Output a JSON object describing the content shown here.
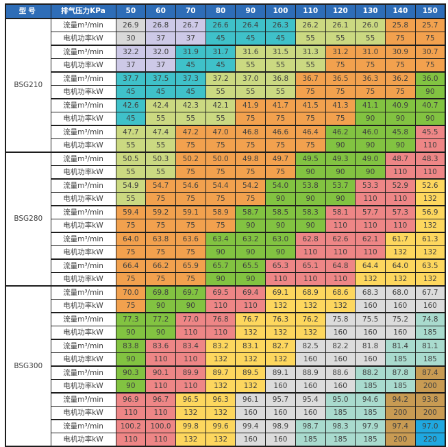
{
  "table": {
    "columns": {
      "model_header": "型号",
      "pressure_header": "排气压力KPa",
      "pressures": [
        "50",
        "60",
        "70",
        "80",
        "90",
        "100",
        "110",
        "120",
        "130",
        "140",
        "150"
      ]
    },
    "row_labels": {
      "flow": "流量m³/min",
      "power": "电机功率kW"
    },
    "colors": {
      "header_bg": "#2e6db7",
      "header_text": "#ffffff",
      "cell_text": "#3f3f3f",
      "border": "#1d1d1d",
      "label_bg": "#ffffff",
      "power_scale": {
        "30": "#d9d9d9",
        "37": "#cdc9e7",
        "45": "#3fc1c9",
        "55": "#cbd981",
        "75": "#f2a14e",
        "90": "#82c341",
        "110": "#ee8686",
        "132": "#fdd75e",
        "160": "#dcdcdc",
        "185": "#a9dbce",
        "200": "#c89b53",
        "220": "#1fa8e0"
      }
    },
    "groups": [
      {
        "model": "BSG210",
        "pairs": [
          {
            "flow": [
              "26.9",
              "26.8",
              "26.7",
              "26.6",
              "26.4",
              "26.3",
              "26.2",
              "26.1",
              "26.0",
              "25.8",
              "25.7"
            ],
            "power": [
              "30",
              "37",
              "37",
              "45",
              "45",
              "45",
              "55",
              "55",
              "55",
              "75",
              "75"
            ]
          },
          {
            "flow": [
              "32.2",
              "32.0",
              "31.9",
              "31.7",
              "31.6",
              "31.5",
              "31.3",
              "31.2",
              "31.0",
              "30.9",
              "30.7"
            ],
            "power": [
              "37",
              "37",
              "45",
              "45",
              "55",
              "55",
              "55",
              "75",
              "75",
              "75",
              "75"
            ]
          },
          {
            "flow": [
              "37.7",
              "37.5",
              "37.3",
              "37.2",
              "37.0",
              "36.8",
              "36.7",
              "36.5",
              "36.3",
              "36.2",
              "36.0"
            ],
            "power": [
              "45",
              "45",
              "45",
              "55",
              "55",
              "55",
              "75",
              "75",
              "75",
              "75",
              "90"
            ]
          },
          {
            "flow": [
              "42.6",
              "42.4",
              "42.3",
              "42.1",
              "41.9",
              "41.7",
              "41.5",
              "41.3",
              "41.1",
              "40.9",
              "40.7"
            ],
            "power": [
              "45",
              "55",
              "55",
              "55",
              "75",
              "75",
              "75",
              "75",
              "90",
              "90",
              "90"
            ]
          },
          {
            "flow": [
              "47.7",
              "47.4",
              "47.2",
              "47.0",
              "46.8",
              "46.6",
              "46.4",
              "46.2",
              "46.0",
              "45.8",
              "45.5"
            ],
            "power": [
              "55",
              "55",
              "75",
              "75",
              "75",
              "75",
              "75",
              "90",
              "90",
              "90",
              "110"
            ]
          }
        ]
      },
      {
        "model": "BSG280",
        "pairs": [
          {
            "flow": [
              "50.5",
              "50.3",
              "50.2",
              "50.0",
              "49.8",
              "49.7",
              "49.5",
              "49.3",
              "49.0",
              "48.7",
              "48.3"
            ],
            "power": [
              "55",
              "55",
              "75",
              "75",
              "75",
              "75",
              "90",
              "90",
              "90",
              "110",
              "110"
            ]
          },
          {
            "flow": [
              "54.9",
              "54.7",
              "54.6",
              "54.4",
              "54.2",
              "54.0",
              "53.8",
              "53.7",
              "53.3",
              "52.9",
              "52.6"
            ],
            "power": [
              "55",
              "75",
              "75",
              "75",
              "75",
              "90",
              "90",
              "90",
              "110",
              "110",
              "132"
            ]
          },
          {
            "flow": [
              "59.4",
              "59.2",
              "59.1",
              "58.9",
              "58.7",
              "58.5",
              "58.3",
              "58.1",
              "57.7",
              "57.3",
              "56.9"
            ],
            "power": [
              "75",
              "75",
              "75",
              "75",
              "90",
              "90",
              "90",
              "110",
              "110",
              "110",
              "132"
            ]
          },
          {
            "flow": [
              "64.0",
              "63.8",
              "63.6",
              "63.4",
              "63.2",
              "63.0",
              "62.8",
              "62.6",
              "62.1",
              "61.7",
              "61.3"
            ],
            "power": [
              "75",
              "75",
              "75",
              "90",
              "90",
              "90",
              "110",
              "110",
              "110",
              "132",
              "132"
            ]
          },
          {
            "flow": [
              "66.4",
              "66.2",
              "65.9",
              "65.7",
              "65.5",
              "65.3",
              "65.1",
              "64.8",
              "64.4",
              "64.0",
              "63.5"
            ],
            "power": [
              "75",
              "75",
              "75",
              "90",
              "90",
              "110",
              "110",
              "110",
              "132",
              "132",
              "132"
            ]
          }
        ]
      },
      {
        "model": "BSG300",
        "pairs": [
          {
            "flow": [
              "70.0",
              "69.8",
              "69.7",
              "69.5",
              "69.4",
              "69.1",
              "68.9",
              "68.6",
              "68.3",
              "68.0",
              "67.7"
            ],
            "power": [
              "75",
              "90",
              "90",
              "110",
              "110",
              "132",
              "132",
              "132",
              "160",
              "160",
              "160"
            ]
          },
          {
            "flow": [
              "77.3",
              "77.2",
              "77.0",
              "76.8",
              "76.7",
              "76.3",
              "76.2",
              "75.8",
              "75.5",
              "75.2",
              "74.8"
            ],
            "power": [
              "90",
              "90",
              "110",
              "110",
              "132",
              "132",
              "132",
              "160",
              "160",
              "160",
              "185"
            ]
          },
          {
            "flow": [
              "83.8",
              "83.6",
              "83.4",
              "83.2",
              "83.1",
              "82.7",
              "82.5",
              "82.2",
              "81.8",
              "81.4",
              "81.1"
            ],
            "power": [
              "90",
              "110",
              "110",
              "132",
              "132",
              "132",
              "160",
              "160",
              "160",
              "185",
              "185"
            ]
          },
          {
            "flow": [
              "90.3",
              "90.1",
              "89.9",
              "89.7",
              "89.5",
              "89.1",
              "88.9",
              "88.6",
              "88.2",
              "87.8",
              "87.4"
            ],
            "power": [
              "90",
              "110",
              "110",
              "132",
              "132",
              "160",
              "160",
              "160",
              "185",
              "185",
              "200"
            ]
          },
          {
            "flow": [
              "96.9",
              "96.7",
              "96.5",
              "96.3",
              "96.1",
              "95.7",
              "95.4",
              "95.0",
              "94.6",
              "94.2",
              "93.8"
            ],
            "power": [
              "110",
              "110",
              "132",
              "132",
              "160",
              "160",
              "160",
              "185",
              "185",
              "200",
              "200"
            ]
          },
          {
            "flow": [
              "100.2",
              "100.0",
              "99.8",
              "99.6",
              "99.4",
              "98.9",
              "98.7",
              "98.3",
              "97.9",
              "97.4",
              "97.0"
            ],
            "power": [
              "110",
              "110",
              "132",
              "132",
              "160",
              "160",
              "185",
              "185",
              "185",
              "200",
              "220"
            ]
          }
        ]
      }
    ]
  }
}
